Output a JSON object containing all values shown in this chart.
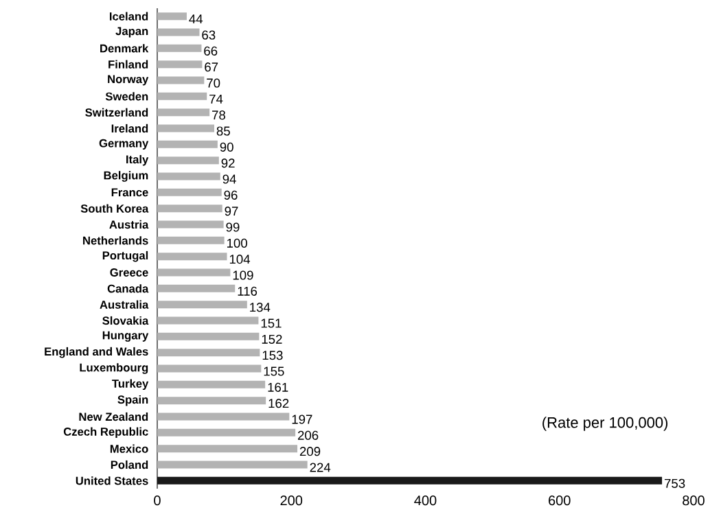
{
  "chart_data": {
    "type": "bar",
    "orientation": "horizontal",
    "categories": [
      "Iceland",
      "Japan",
      "Denmark",
      "Finland",
      "Norway",
      "Sweden",
      "Switzerland",
      "Ireland",
      "Germany",
      "Italy",
      "Belgium",
      "France",
      "South Korea",
      "Austria",
      "Netherlands",
      "Portugal",
      "Greece",
      "Canada",
      "Australia",
      "Slovakia",
      "Hungary",
      "England and Wales",
      "Luxembourg",
      "Turkey",
      "Spain",
      "New Zealand",
      "Czech Republic",
      "Mexico",
      "Poland",
      "United States"
    ],
    "values": [
      44,
      63,
      66,
      67,
      70,
      74,
      78,
      85,
      90,
      92,
      94,
      96,
      97,
      99,
      100,
      104,
      109,
      116,
      134,
      151,
      152,
      153,
      155,
      161,
      162,
      197,
      206,
      209,
      224,
      753
    ],
    "colors": [
      "#b3b3b3",
      "#b3b3b3",
      "#b3b3b3",
      "#b3b3b3",
      "#b3b3b3",
      "#b3b3b3",
      "#b3b3b3",
      "#b3b3b3",
      "#b3b3b3",
      "#b3b3b3",
      "#b3b3b3",
      "#b3b3b3",
      "#b3b3b3",
      "#b3b3b3",
      "#b3b3b3",
      "#b3b3b3",
      "#b3b3b3",
      "#b3b3b3",
      "#b3b3b3",
      "#b3b3b3",
      "#b3b3b3",
      "#b3b3b3",
      "#b3b3b3",
      "#b3b3b3",
      "#b3b3b3",
      "#b3b3b3",
      "#b3b3b3",
      "#b3b3b3",
      "#b3b3b3",
      "#1a1a1a"
    ],
    "xlim": [
      0,
      800
    ],
    "xticks": [
      0,
      200,
      400,
      600,
      800
    ],
    "data_labels": true,
    "annotations": [
      "(Rate per 100,000)"
    ]
  }
}
